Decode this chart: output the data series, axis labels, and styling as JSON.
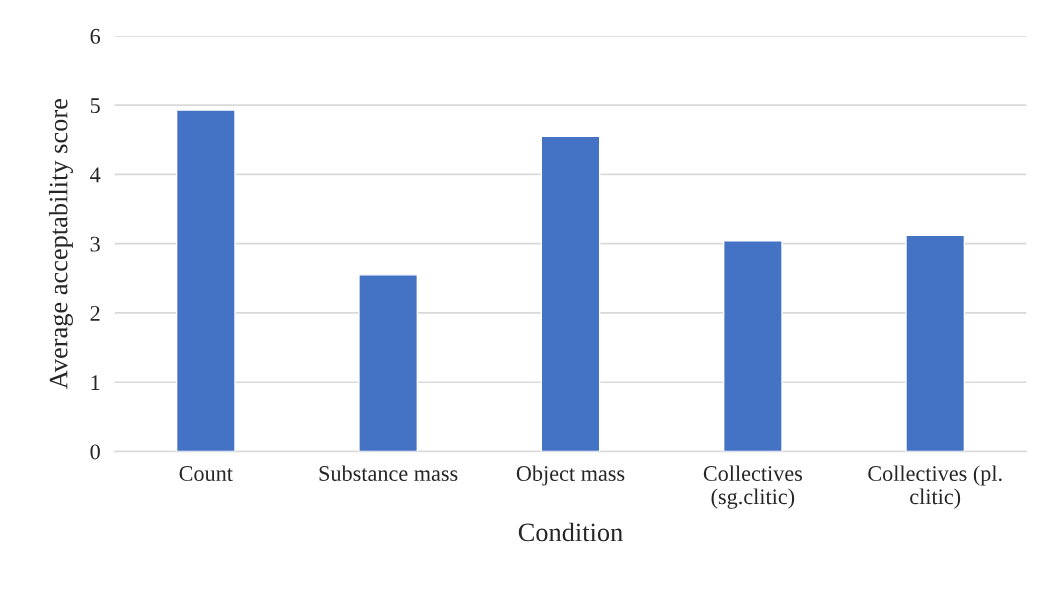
{
  "chart_data": {
    "type": "bar",
    "xlabel": "Condition",
    "ylabel": "Average acceptability score",
    "categories": [
      "Count",
      "Substance mass",
      "Object mass",
      "Collectives\n(sg.clitic)",
      "Collectives (pl.\nclitic)"
    ],
    "values": [
      4.93,
      2.55,
      4.55,
      3.04,
      3.12
    ],
    "color": "#4472c4",
    "ylim": [
      0,
      6
    ],
    "yticks": [
      0,
      1,
      2,
      3,
      4,
      5,
      6
    ],
    "grid": "y"
  }
}
